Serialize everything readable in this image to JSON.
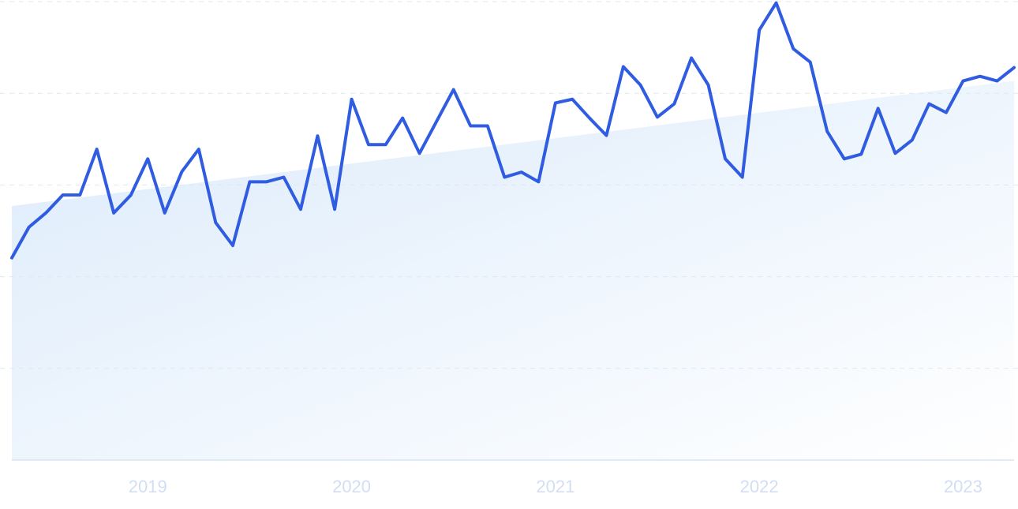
{
  "chart_data": {
    "type": "line",
    "x": [
      2018.333,
      2018.417,
      2018.5,
      2018.583,
      2018.667,
      2018.75,
      2018.833,
      2018.917,
      2019,
      2019.083,
      2019.167,
      2019.25,
      2019.333,
      2019.417,
      2019.5,
      2019.583,
      2019.667,
      2019.75,
      2019.833,
      2019.917,
      2020,
      2020.083,
      2020.167,
      2020.25,
      2020.333,
      2020.417,
      2020.5,
      2020.583,
      2020.667,
      2020.75,
      2020.833,
      2020.917,
      2021,
      2021.083,
      2021.167,
      2021.25,
      2021.333,
      2021.417,
      2021.5,
      2021.583,
      2021.667,
      2021.75,
      2021.833,
      2021.917,
      2022,
      2022.083,
      2022.167,
      2022.25,
      2022.333,
      2022.417,
      2022.5,
      2022.583,
      2022.667,
      2022.75,
      2022.833,
      2022.917,
      2023,
      2023.083,
      2023.167,
      2023.25
    ],
    "series": [
      {
        "color": "#2f5ce0",
        "values": [
          44.1,
          50.8,
          53.9,
          57.8,
          57.8,
          67.8,
          53.9,
          57.8,
          65.7,
          53.9,
          62.9,
          67.8,
          51.8,
          46.8,
          60.7,
          60.7,
          61.7,
          54.7,
          70.7,
          54.7,
          78.7,
          68.8,
          68.8,
          74.6,
          66.9,
          73.9,
          80.8,
          72.9,
          72.9,
          61.7,
          62.8,
          60.7,
          77.9,
          78.7,
          74.6,
          70.8,
          85.8,
          81.8,
          74.8,
          77.7,
          87.7,
          81.8,
          65.7,
          61.7,
          93.8,
          99.7,
          89.7,
          86.8,
          71.7,
          65.7,
          66.7,
          76.7,
          66.9,
          69.8,
          77.7,
          75.8,
          82.7,
          83.7,
          82.7,
          85.6
        ]
      }
    ],
    "trend": {
      "x": [
        2018.333,
        2023.25
      ],
      "values": [
        55.4,
        82.7
      ],
      "color": "#dcebfb"
    },
    "xlim": [
      2018.333,
      2023.25
    ],
    "xticks": [
      2019,
      2020,
      2021,
      2022,
      2023
    ],
    "ylim": [
      0,
      100
    ],
    "yticks": [
      0,
      20,
      40,
      60,
      80,
      100
    ],
    "grid": true
  }
}
